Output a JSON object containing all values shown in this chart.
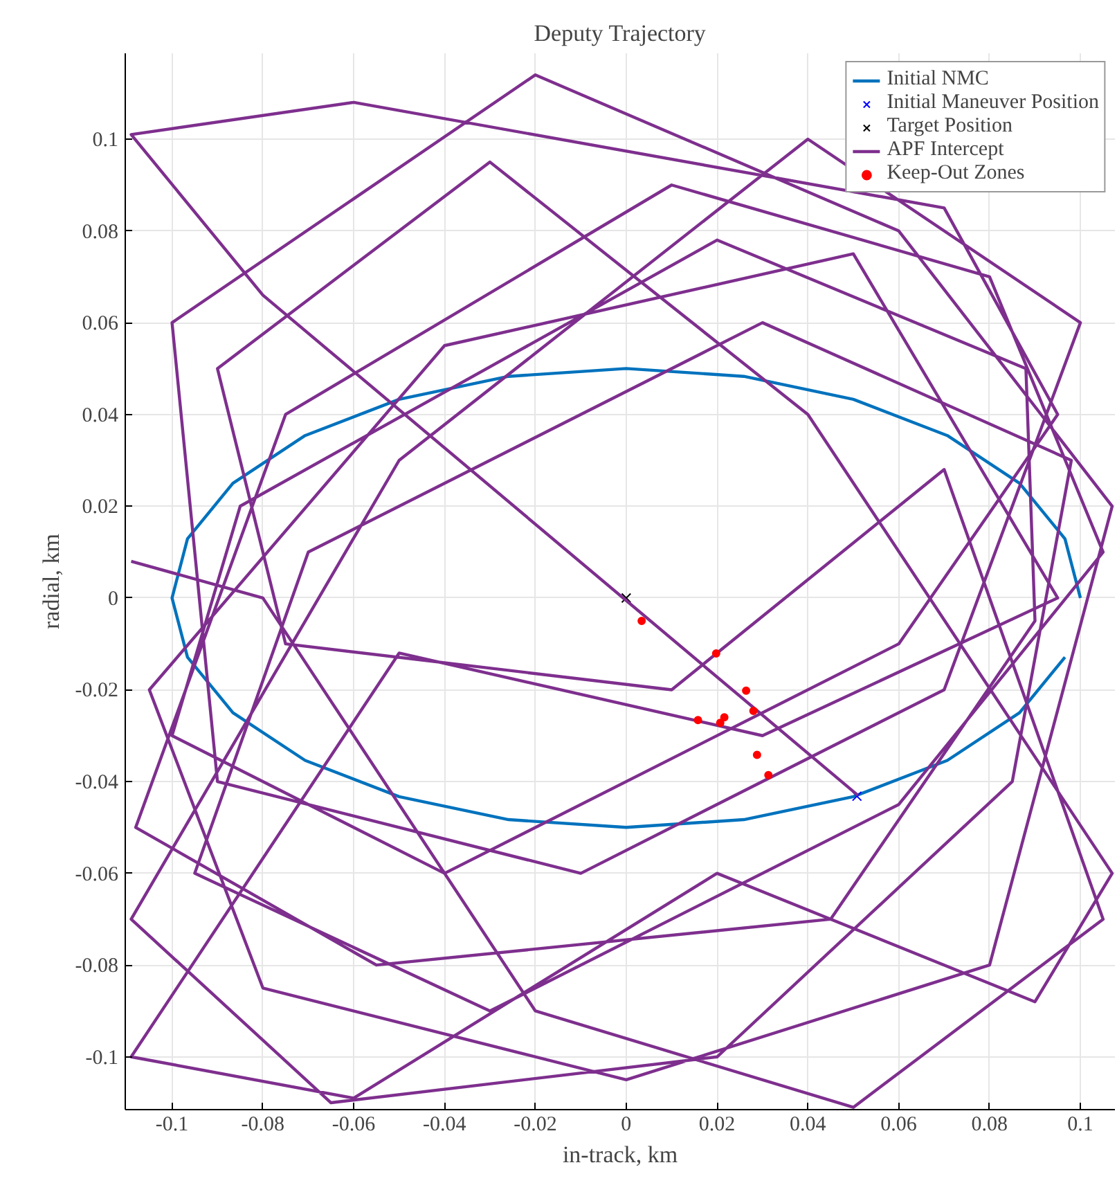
{
  "chart_data": {
    "type": "line",
    "title": "Deputy Trajectory",
    "xlabel": "in-track, km",
    "ylabel": "radial, km",
    "xlim": [
      -0.1103,
      0.1076
    ],
    "ylim": [
      -0.1115,
      0.1187
    ],
    "xticks": [
      -0.1,
      -0.08,
      -0.06,
      -0.04,
      -0.02,
      0,
      0.02,
      0.04,
      0.06,
      0.08,
      0.1
    ],
    "yticks": [
      -0.1,
      -0.08,
      -0.06,
      -0.04,
      -0.02,
      0,
      0.02,
      0.04,
      0.06,
      0.08,
      0.1
    ],
    "grid": true,
    "legend": "top right",
    "series": [
      {
        "name": "Initial NMC",
        "color": "#0072bd",
        "line_style": "solid",
        "x": [
          0.1,
          0.0966,
          0.0866,
          0.0707,
          0.05,
          0.0259,
          0,
          -0.0259,
          -0.05,
          -0.0707,
          -0.0866,
          -0.0966,
          -0.1,
          -0.0966,
          -0.0866,
          -0.0707,
          -0.05,
          -0.0259,
          0,
          0.0259,
          0.05,
          0.0707,
          0.0866,
          0.0966
        ],
        "values": [
          0,
          0.0129,
          0.025,
          0.0354,
          0.0433,
          0.0483,
          0.05,
          0.0483,
          0.0433,
          0.0354,
          0.025,
          0.0129,
          0,
          -0.0129,
          -0.025,
          -0.0354,
          -0.0433,
          -0.0483,
          -0.05,
          -0.0483,
          -0.0433,
          -0.0354,
          -0.025,
          -0.0129
        ]
      },
      {
        "name": "Initial Maneuver Position",
        "type": "scatter",
        "marker": "cross",
        "color": "#0000ff",
        "x": [
          0.0508
        ],
        "values": [
          -0.0432
        ]
      },
      {
        "name": "Target Position",
        "type": "scatter",
        "marker": "cross",
        "color": "#000000",
        "x": [
          0
        ],
        "values": [
          0
        ]
      },
      {
        "name": "APF Intercept",
        "color": "#7e2f8e",
        "line_style": "solid",
        "x": [
          0.051,
          -0.08,
          -0.109,
          -0.06,
          0.07,
          0.095,
          0.06,
          -0.04,
          -0.1,
          -0.085,
          0.02,
          0.088,
          0.09,
          0.045,
          -0.055,
          -0.108,
          -0.075,
          0.01,
          0.08,
          0.105,
          0.06,
          -0.03,
          -0.095,
          -0.07,
          0.03,
          0.098,
          0.085,
          0.02,
          -0.065,
          -0.109,
          -0.05,
          0.04,
          0.1,
          0.07,
          -0.01,
          -0.09,
          -0.1,
          -0.02,
          0.06,
          0.107,
          0.08,
          0.0,
          -0.08,
          -0.105,
          -0.04,
          0.05,
          0.095,
          0.03,
          -0.05,
          -0.109,
          -0.06,
          0.02,
          0.09,
          0.107,
          0.04,
          -0.03,
          -0.09,
          -0.075,
          0.01,
          0.07,
          0.105,
          0.05,
          -0.02,
          -0.08,
          -0.109
        ],
        "values": [
          -0.043,
          0.066,
          0.101,
          0.108,
          0.085,
          0.04,
          -0.01,
          -0.06,
          -0.03,
          0.02,
          0.078,
          0.05,
          -0.005,
          -0.07,
          -0.08,
          -0.05,
          0.04,
          0.09,
          0.07,
          0.01,
          -0.045,
          -0.09,
          -0.06,
          0.01,
          0.06,
          0.03,
          -0.04,
          -0.1,
          -0.11,
          -0.07,
          0.03,
          0.1,
          0.06,
          -0.02,
          -0.06,
          -0.04,
          0.06,
          0.114,
          0.08,
          0.02,
          -0.08,
          -0.105,
          -0.085,
          -0.02,
          0.055,
          0.075,
          0.0,
          -0.03,
          -0.012,
          -0.1,
          -0.109,
          -0.06,
          -0.088,
          -0.06,
          0.04,
          0.095,
          0.05,
          -0.01,
          -0.02,
          0.028,
          -0.07,
          -0.111,
          -0.09,
          0.0,
          0.008
        ]
      },
      {
        "name": "Keep-Out Zones",
        "type": "scatter",
        "marker": "circle",
        "color": "#ff0000",
        "x": [
          0.0034,
          0.0198,
          0.0264,
          0.028,
          0.0158,
          0.0216,
          0.0207,
          0.0288,
          0.0313
        ],
        "values": [
          -0.005,
          -0.0121,
          -0.0202,
          -0.0246,
          -0.0266,
          -0.026,
          -0.0272,
          -0.0342,
          -0.0386
        ]
      }
    ]
  }
}
